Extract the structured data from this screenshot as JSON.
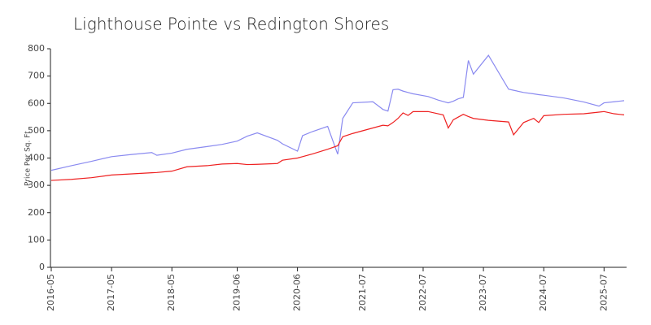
{
  "chart_data": {
    "type": "line",
    "title": "Lighthouse Pointe vs Redington Shores",
    "ylabel": "Price Per Sq. Ft",
    "x": [
      "2016-05",
      "2016-09",
      "2017-01",
      "2017-05",
      "2017-09",
      "2018-01",
      "2018-02",
      "2018-05",
      "2018-08",
      "2018-12",
      "2019-03",
      "2019-06",
      "2019-08",
      "2019-10",
      "2020-02",
      "2020-03",
      "2020-06",
      "2020-07",
      "2020-09",
      "2020-12",
      "2021-02",
      "2021-03",
      "2021-05",
      "2021-09",
      "2021-11",
      "2021-12",
      "2022-01",
      "2022-02",
      "2022-03",
      "2022-04",
      "2022-05",
      "2022-08",
      "2022-10",
      "2022-11",
      "2022-12",
      "2023-01",
      "2023-02",
      "2023-03",
      "2023-04",
      "2023-05",
      "2023-08",
      "2023-12",
      "2024-01",
      "2024-03",
      "2024-05",
      "2024-06",
      "2024-07",
      "2024-11",
      "2025-03",
      "2025-06",
      "2025-07",
      "2025-09",
      "2025-11"
    ],
    "series": [
      {
        "name": "Lighthouse Pointe",
        "color": "#8a8af0",
        "values": [
          355,
          372,
          388,
          405,
          413,
          420,
          410,
          418,
          432,
          442,
          450,
          462,
          480,
          492,
          465,
          452,
          425,
          482,
          497,
          516,
          414,
          545,
          602,
          606,
          578,
          572,
          650,
          652,
          645,
          640,
          635,
          625,
          612,
          607,
          602,
          608,
          617,
          622,
          757,
          707,
          776,
          652,
          648,
          640,
          635,
          632,
          630,
          620,
          605,
          590,
          602,
          606,
          610
        ]
      },
      {
        "name": "Redington Shores",
        "color": "#ee2020",
        "values": [
          318,
          322,
          328,
          338,
          342,
          346,
          347,
          352,
          368,
          372,
          378,
          380,
          376,
          377,
          380,
          392,
          400,
          405,
          415,
          432,
          445,
          478,
          490,
          510,
          520,
          518,
          530,
          545,
          565,
          556,
          570,
          570,
          562,
          558,
          510,
          540,
          550,
          560,
          552,
          545,
          538,
          532,
          485,
          530,
          545,
          530,
          555,
          560,
          562,
          568,
          570,
          562,
          558
        ]
      }
    ],
    "xlim": [
      "2016-05",
      "2025-11"
    ],
    "xticks": [
      "2016-05",
      "2017-05",
      "2018-05",
      "2019-06",
      "2020-06",
      "2021-07",
      "2022-07",
      "2023-07",
      "2024-07",
      "2025-07"
    ],
    "ylim": [
      0,
      800
    ],
    "yticks": [
      0,
      100,
      200,
      300,
      400,
      500,
      600,
      700,
      800
    ],
    "grid": false
  }
}
